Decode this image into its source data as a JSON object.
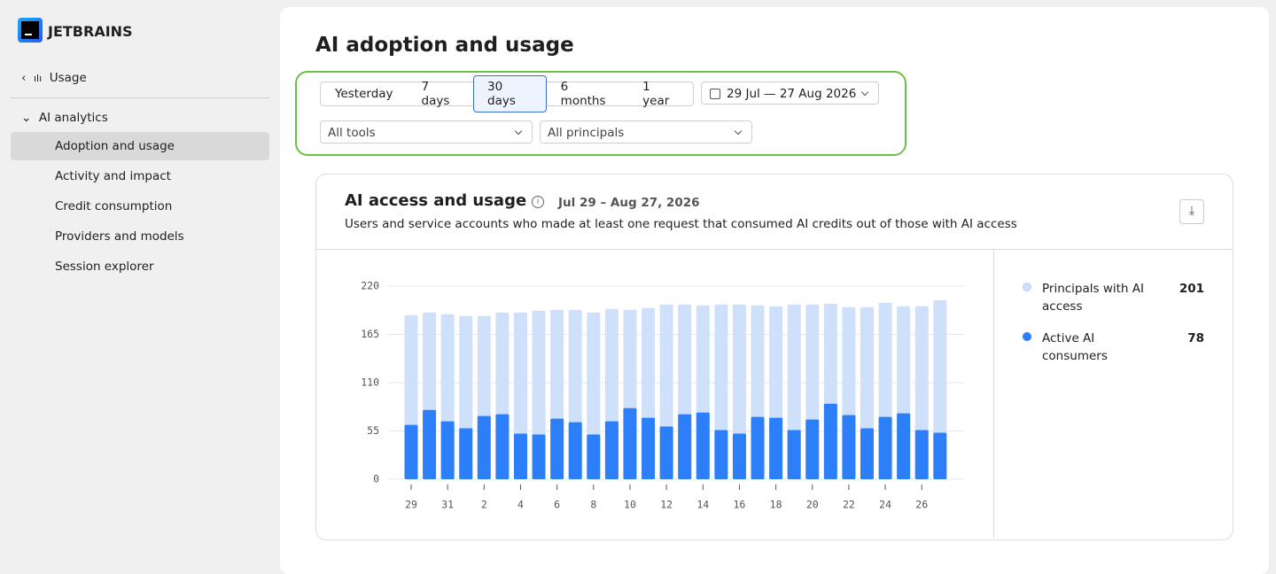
{
  "sidebar": {
    "logo": "JETBRAINS",
    "back": "Usage",
    "section": "AI analytics",
    "items": [
      "Adoption and usage",
      "Activity and impact",
      "Credit consumption",
      "Providers and models",
      "Session explorer"
    ],
    "selected": 0
  },
  "header": {
    "title": "AI adoption and usage"
  },
  "filters": {
    "ranges": [
      "Yesterday",
      "7 days",
      "30 days",
      "6 months",
      "1 year"
    ],
    "selected": 2,
    "date_range": "29 Jul — 27 Aug 2026",
    "tools": "All tools",
    "principals": "All principals"
  },
  "card": {
    "title": "AI access and usage",
    "date": "Jul 29 – Aug 27, 2026",
    "subtitle": "Users and service accounts who made at least one request that consumed AI credits out of those with AI access"
  },
  "chart_data": {
    "type": "bar",
    "mode": "overlay",
    "categories": [
      "29",
      null,
      "31",
      null,
      "2",
      null,
      "4",
      null,
      "6",
      null,
      "8",
      null,
      "10",
      null,
      "12",
      null,
      "14",
      null,
      "16",
      null,
      "18",
      null,
      "20",
      null,
      "22",
      null,
      "24",
      null,
      "26",
      null
    ],
    "series": [
      {
        "name": "Principals with AI access",
        "color": "#cfe0fb",
        "total": 201,
        "values": [
          187,
          190,
          188,
          186,
          186,
          190,
          190,
          192,
          193,
          193,
          190,
          194,
          193,
          195,
          199,
          199,
          198,
          199,
          199,
          198,
          197,
          199,
          199,
          200,
          196,
          196,
          201,
          197,
          197,
          204
        ]
      },
      {
        "name": "Active AI consumers",
        "color": "#2d7ff9",
        "total": 78,
        "values": [
          62,
          79,
          66,
          58,
          72,
          74,
          52,
          51,
          69,
          65,
          51,
          66,
          81,
          70,
          60,
          74,
          76,
          56,
          52,
          71,
          70,
          56,
          68,
          86,
          73,
          58,
          71,
          75,
          56,
          53
        ]
      }
    ],
    "ylim": [
      0,
      220
    ],
    "yticks": [
      0,
      55,
      110,
      165,
      220
    ],
    "grid": true
  }
}
